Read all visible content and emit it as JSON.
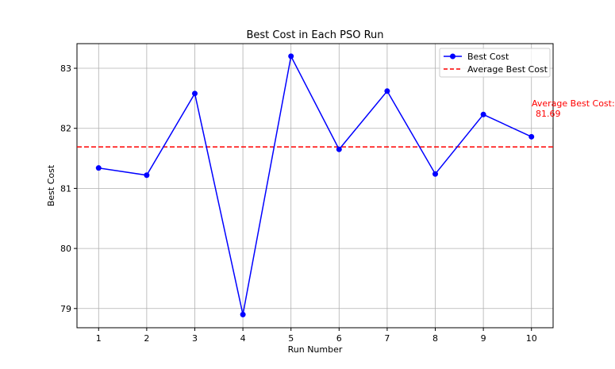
{
  "chart_data": {
    "type": "line",
    "title": "Best Cost in Each PSO Run",
    "xlabel": "Run Number",
    "ylabel": "Best Cost",
    "x": [
      1,
      2,
      3,
      4,
      5,
      6,
      7,
      8,
      9,
      10
    ],
    "xlim": [
      0.55,
      10.45
    ],
    "ylim": [
      78.68,
      83.41
    ],
    "xticks": [
      1,
      2,
      3,
      4,
      5,
      6,
      7,
      8,
      9,
      10
    ],
    "yticks": [
      79,
      80,
      81,
      82,
      83
    ],
    "grid": true,
    "legend_position": "top-right",
    "series": [
      {
        "name": "Best Cost",
        "color": "#0000ff",
        "marker": "circle",
        "values": [
          81.34,
          81.22,
          82.58,
          78.9,
          83.2,
          81.65,
          82.62,
          81.24,
          82.23,
          81.86
        ]
      }
    ],
    "reference_line": {
      "name": "Average Best Cost",
      "value": 81.69,
      "color": "#ff0000",
      "style": "dashed"
    },
    "annotation": {
      "line1": "Average Best Cost:",
      "line2": "81.69",
      "color": "#ff0000"
    }
  }
}
